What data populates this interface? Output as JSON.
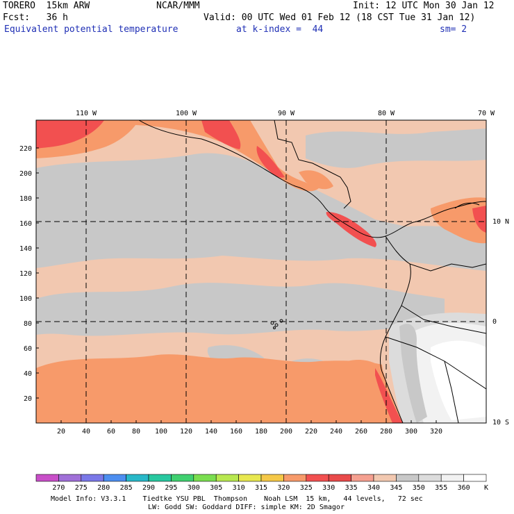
{
  "header": {
    "model": "TORERO  15km ARW",
    "center": "NCAR/MMM",
    "init": "Init: 12 UTC Mon 30 Jan 12",
    "fcst": "Fcst:   36 h",
    "valid": "Valid: 00 UTC Wed 01 Feb 12 (18 CST Tue 31 Jan 12)",
    "field": "Equivalent potential temperature",
    "level": "at k-index =  44",
    "smooth": "sm= 2"
  },
  "axes": {
    "x_ticks": [
      "20",
      "40",
      "60",
      "80",
      "100",
      "120",
      "140",
      "160",
      "180",
      "200",
      "220",
      "240",
      "260",
      "280",
      "300",
      "320"
    ],
    "y_ticks": [
      "20",
      "40",
      "60",
      "80",
      "100",
      "120",
      "140",
      "160",
      "180",
      "200",
      "220"
    ],
    "lon_labels": [
      "110 W",
      "100 W",
      "90 W",
      "80 W",
      "70 W"
    ],
    "lat_labels": [
      "10 N",
      "0",
      "10 S"
    ]
  },
  "colorbar": {
    "ticks": [
      "270",
      "275",
      "280",
      "285",
      "290",
      "295",
      "300",
      "305",
      "310",
      "315",
      "320",
      "325",
      "330",
      "335",
      "340",
      "345",
      "350",
      "355",
      "360"
    ],
    "unit": "K",
    "colors": [
      "#c84fc8",
      "#a070d8",
      "#7a78e8",
      "#4d8ef0",
      "#28b8c8",
      "#28c8a0",
      "#40d070",
      "#7ade50",
      "#b8e850",
      "#e8e850",
      "#f5c848",
      "#f79a6a",
      "#f25050",
      "#e94a4a",
      "#f5a090",
      "#f2c8b0",
      "#c8c8c8",
      "#dcdcdc",
      "#f2f2f2",
      "#ffffff"
    ]
  },
  "footer": {
    "line1": "Model Info: V3.3.1    Tiedtke YSU PBL  Thompson    Noah LSM  15 km,   44 levels,   72 sec",
    "line2": "LW: Godd SW: Goddard DIFF: simple KM: 2D Smagor"
  }
}
